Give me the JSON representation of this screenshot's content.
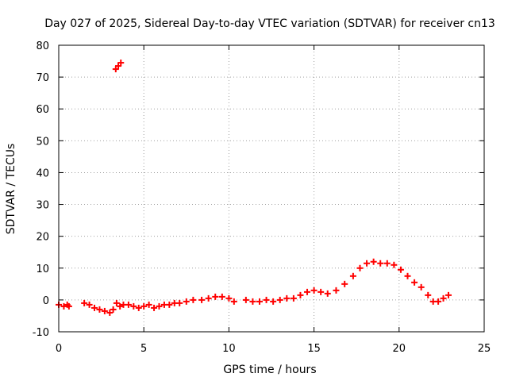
{
  "chart_data": {
    "type": "scatter",
    "title": "Day 027 of 2025, Sidereal Day-to-day VTEC variation (SDTVAR) for receiver cn13",
    "xlabel": "GPS time / hours",
    "ylabel": "SDTVAR / TECUs",
    "xlim": [
      0,
      25
    ],
    "ylim": [
      -10,
      80
    ],
    "xticks": [
      0,
      5,
      10,
      15,
      20,
      25
    ],
    "yticks": [
      -10,
      0,
      10,
      20,
      30,
      40,
      50,
      60,
      70,
      80
    ],
    "grid": true,
    "legend": "none",
    "series": [
      {
        "name": "SDTVAR",
        "color": "#ff0000",
        "marker": "plus",
        "x": [
          0.0,
          0.3,
          0.5,
          0.6,
          1.5,
          1.8,
          2.1,
          2.4,
          2.7,
          3.0,
          3.2,
          3.4,
          3.6,
          3.8,
          4.1,
          4.4,
          4.7,
          5.0,
          5.3,
          5.6,
          5.9,
          6.2,
          6.5,
          6.8,
          7.1,
          7.5,
          7.9,
          8.4,
          8.8,
          9.2,
          9.6,
          10.0,
          10.3,
          11.0,
          11.4,
          11.8,
          12.2,
          12.6,
          13.0,
          13.4,
          13.8,
          14.2,
          14.6,
          15.0,
          15.4,
          15.8,
          16.3,
          16.8,
          17.3,
          17.7,
          18.1,
          18.5,
          18.9,
          19.3,
          19.7,
          20.1,
          20.5,
          20.9,
          21.3,
          21.7,
          22.0,
          22.3,
          22.6,
          22.9,
          3.35,
          3.5,
          3.65
        ],
        "y": [
          -1.5,
          -2,
          -1.5,
          -2,
          -1,
          -1.5,
          -2.5,
          -3,
          -3.5,
          -4,
          -3,
          -1,
          -2,
          -1.5,
          -1.5,
          -2,
          -2.5,
          -2,
          -1.5,
          -2.5,
          -2,
          -1.5,
          -1.5,
          -1,
          -1,
          -0.5,
          0,
          0,
          0.5,
          1,
          1,
          0.5,
          -0.5,
          0,
          -0.5,
          -0.5,
          0,
          -0.5,
          0,
          0.5,
          0.5,
          1.5,
          2.5,
          3,
          2.5,
          2,
          3,
          5,
          7.5,
          10,
          11.5,
          12,
          11.5,
          11.5,
          11,
          9.5,
          7.5,
          5.5,
          4,
          1.5,
          -0.5,
          -0.5,
          0.5,
          1.5,
          72.5,
          73.5,
          74.5
        ]
      }
    ]
  }
}
